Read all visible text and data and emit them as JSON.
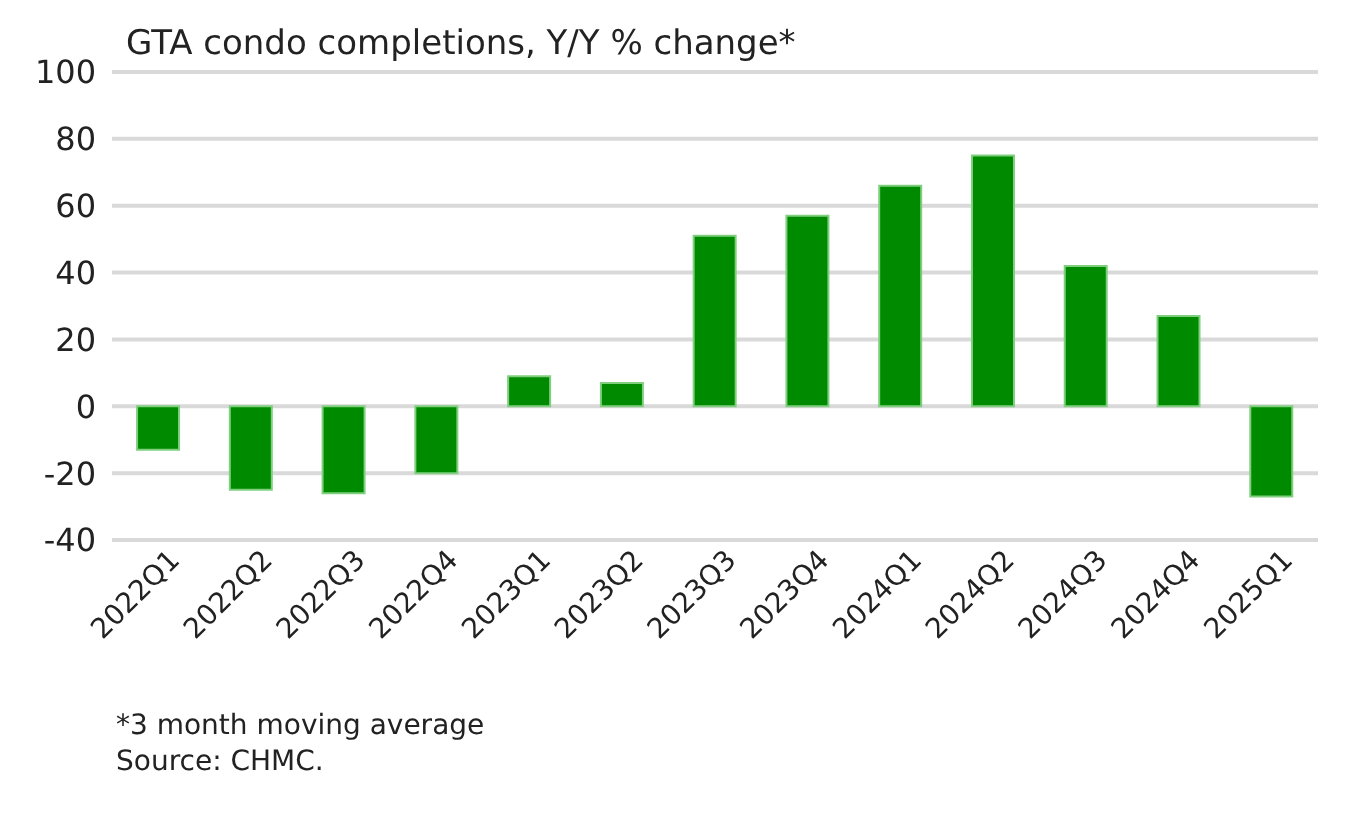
{
  "chart_data": {
    "type": "bar",
    "title": "GTA condo completions, Y/Y % change*",
    "categories": [
      "2022Q1",
      "2022Q2",
      "2022Q3",
      "2022Q4",
      "2023Q1",
      "2023Q2",
      "2023Q3",
      "2023Q4",
      "2024Q1",
      "2024Q2",
      "2024Q3",
      "2024Q4",
      "2025Q1"
    ],
    "values": [
      -13,
      -25,
      -26,
      -20,
      9,
      7,
      51,
      57,
      66,
      75,
      42,
      27,
      -27
    ],
    "color": "#008a00",
    "ylim": [
      -40,
      100
    ],
    "yticks": [
      -40,
      -20,
      0,
      20,
      40,
      60,
      80,
      100
    ],
    "grid": "y",
    "annotations": [
      "*3 month moving average",
      "Source: CHMC."
    ]
  }
}
